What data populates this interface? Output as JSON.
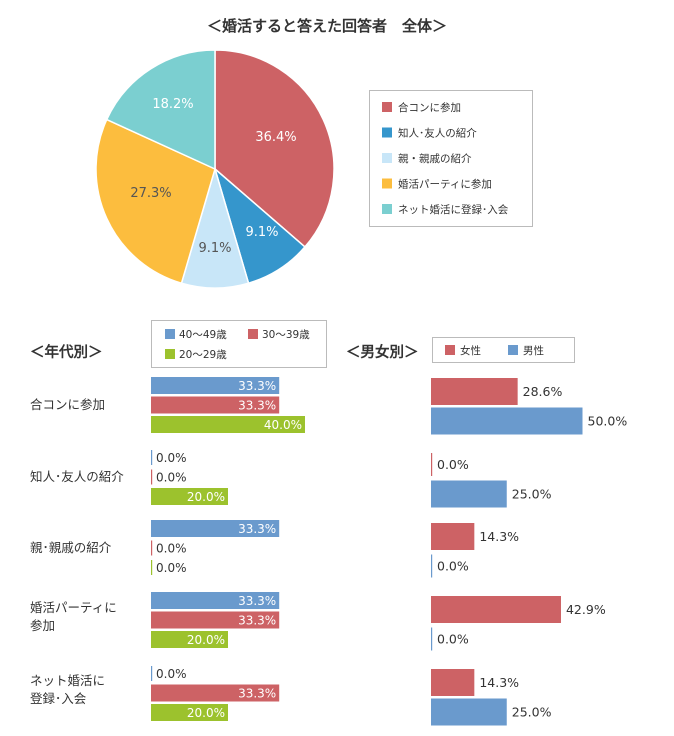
{
  "pie": {
    "title": "＜婚活すると答えた回答者　全体＞",
    "chart_data": {
      "type": "pie",
      "categories": [
        "合コンに参加",
        "知人･友人の紹介",
        "親・親戚の紹介",
        "婚活パーティに参加",
        "ネット婚活に登録･入会"
      ],
      "values": [
        36.4,
        9.1,
        9.1,
        27.3,
        18.2
      ],
      "labels": [
        "36.4%",
        "9.1%",
        "9.1%",
        "27.3%",
        "18.2%"
      ],
      "colors": [
        "#cd6265",
        "#3596cc",
        "#c8e6f8",
        "#fcbd3e",
        "#7bcfd0"
      ],
      "label_colors": [
        "#ffffff",
        "#ffffff",
        "#555555",
        "#555555",
        "#ffffff"
      ],
      "legend_placement": "right"
    }
  },
  "age": {
    "title": "＜年代別＞",
    "legend": [
      {
        "label": "40～49歳",
        "color": "#6a9acd"
      },
      {
        "label": "30～39歳",
        "color": "#cd6265"
      },
      {
        "label": "20～29歳",
        "color": "#9cc22d"
      }
    ],
    "chart_data": {
      "type": "bar",
      "orientation": "horizontal",
      "categories": [
        "合コンに参加",
        "知人･友人の紹介",
        "親･親戚の紹介",
        "婚活パーティに\n参加",
        "ネット婚活に\n登録･入会"
      ],
      "series": [
        {
          "name": "40～49歳",
          "values": [
            33.3,
            0.0,
            33.3,
            33.3,
            0.0
          ],
          "labels": [
            "33.3%",
            "0.0%",
            "33.3%",
            "33.3%",
            "0.0%"
          ]
        },
        {
          "name": "30～39歳",
          "values": [
            33.3,
            0.0,
            0.0,
            33.3,
            33.3
          ],
          "labels": [
            "33.3%",
            "0.0%",
            "0.0%",
            "33.3%",
            "33.3%"
          ]
        },
        {
          "name": "20～29歳",
          "values": [
            40.0,
            20.0,
            0.0,
            20.0,
            20.0
          ],
          "labels": [
            "40.0%",
            "20.0%",
            "0.0%",
            "20.0%",
            "20.0%"
          ]
        }
      ]
    }
  },
  "gender": {
    "title": "＜男女別＞",
    "legend": [
      {
        "label": "女性",
        "color": "#cd6265"
      },
      {
        "label": "男性",
        "color": "#6a9acd"
      }
    ],
    "chart_data": {
      "type": "bar",
      "orientation": "horizontal",
      "categories": [
        "合コンに参加",
        "知人･友人の紹介",
        "親･親戚の紹介",
        "婚活パーティに参加",
        "ネット婚活に登録･入会"
      ],
      "series": [
        {
          "name": "女性",
          "values": [
            28.6,
            0.0,
            14.3,
            42.9,
            14.3
          ],
          "labels": [
            "28.6%",
            "0.0%",
            "14.3%",
            "42.9%",
            "14.3%"
          ]
        },
        {
          "name": "男性",
          "values": [
            50.0,
            25.0,
            0.0,
            0.0,
            25.0
          ],
          "labels": [
            "50.0%",
            "25.0%",
            "0.0%",
            "0.0%",
            "25.0%"
          ]
        }
      ]
    }
  }
}
